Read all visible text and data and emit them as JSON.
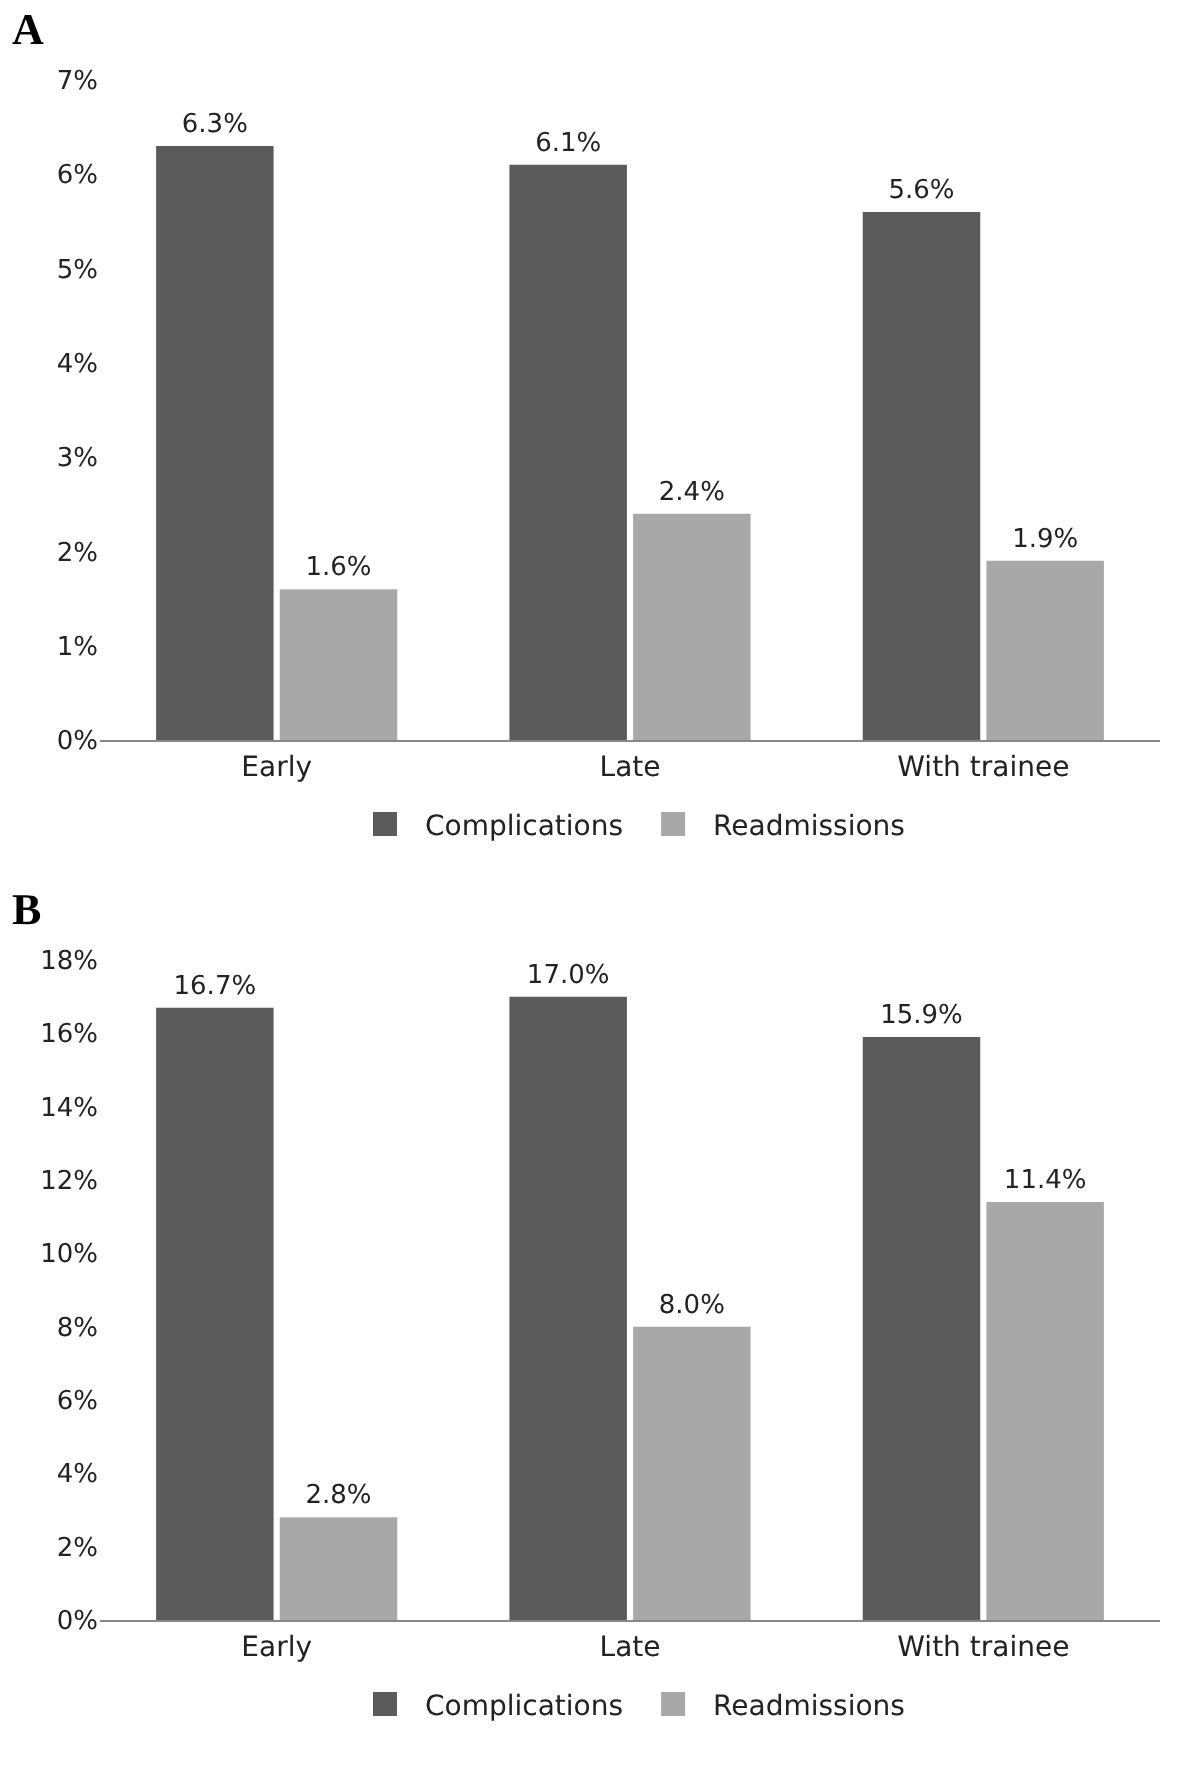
{
  "chart_data": [
    {
      "type": "bar",
      "title": "A",
      "categories": [
        "Early",
        "Late",
        "With trainee"
      ],
      "series": [
        {
          "name": "Complications",
          "color": "#5a5a5a",
          "values": [
            6.3,
            6.1,
            5.6
          ],
          "value_labels": [
            "6.3%",
            "6.1%",
            "5.6%"
          ]
        },
        {
          "name": "Readmissions",
          "color": "#a8a8a8",
          "values": [
            1.6,
            2.4,
            1.9
          ],
          "value_labels": [
            "1.6%",
            "2.4%",
            "1.9%"
          ]
        }
      ],
      "ylim": [
        0,
        7
      ],
      "yticks": [
        {
          "value": 0,
          "label": "0%"
        },
        {
          "value": 1,
          "label": "1%"
        },
        {
          "value": 2,
          "label": "2%"
        },
        {
          "value": 3,
          "label": "3%"
        },
        {
          "value": 4,
          "label": "4%"
        },
        {
          "value": 5,
          "label": "5%"
        },
        {
          "value": 6,
          "label": "6%"
        },
        {
          "value": 7,
          "label": "7%"
        }
      ],
      "grid": false,
      "legend": "bottom"
    },
    {
      "type": "bar",
      "title": "B",
      "categories": [
        "Early",
        "Late",
        "With trainee"
      ],
      "series": [
        {
          "name": "Complications",
          "color": "#5a5a5a",
          "values": [
            16.7,
            17.0,
            15.9
          ],
          "value_labels": [
            "16.7%",
            "17.0%",
            "15.9%"
          ]
        },
        {
          "name": "Readmissions",
          "color": "#a8a8a8",
          "values": [
            2.8,
            8.0,
            11.4
          ],
          "value_labels": [
            "2.8%",
            "8.0%",
            "11.4%"
          ]
        }
      ],
      "ylim": [
        0,
        18
      ],
      "yticks": [
        {
          "value": 0,
          "label": "0%"
        },
        {
          "value": 2,
          "label": "2%"
        },
        {
          "value": 4,
          "label": "4%"
        },
        {
          "value": 6,
          "label": "6%"
        },
        {
          "value": 8,
          "label": "8%"
        },
        {
          "value": 10,
          "label": "10%"
        },
        {
          "value": 12,
          "label": "12%"
        },
        {
          "value": 14,
          "label": "14%"
        },
        {
          "value": 16,
          "label": "16%"
        },
        {
          "value": 18,
          "label": "18%"
        }
      ],
      "grid": false,
      "legend": "bottom"
    }
  ]
}
